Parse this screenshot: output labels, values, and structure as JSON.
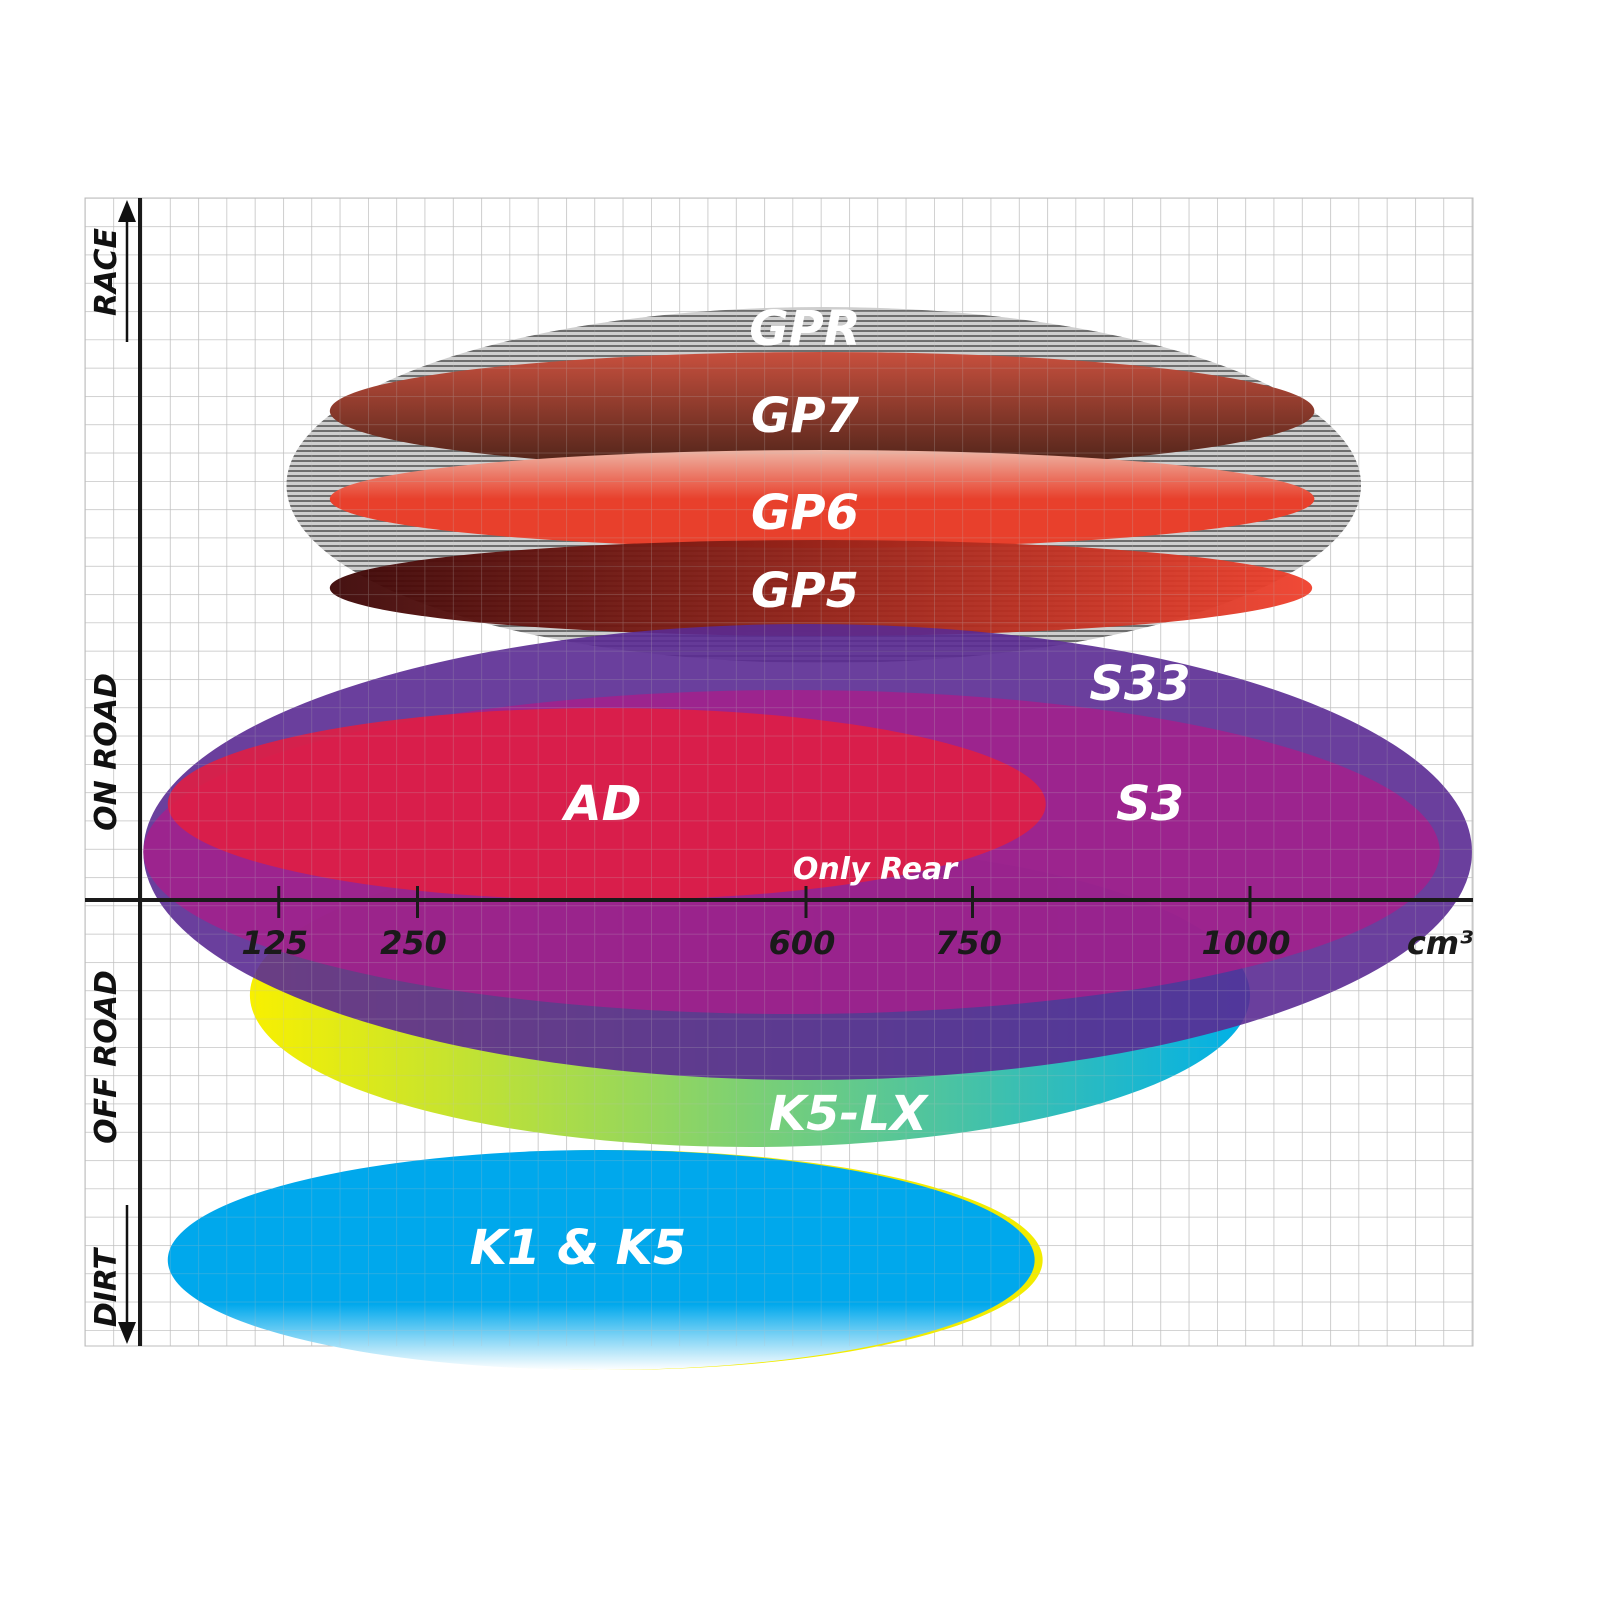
{
  "chart_data": {
    "type": "range-ellipse",
    "x_axis": {
      "unit": "cm³",
      "ticks": [
        125,
        250,
        600,
        750,
        1000
      ],
      "grid": true
    },
    "y_axis": {
      "categories": [
        "RACE",
        "ON ROAD",
        "OFF ROAD",
        "DIRT"
      ],
      "grid": true
    },
    "items": [
      {
        "label": "GPR",
        "cc_range": [
          132,
          1100
        ],
        "color": "#a8a8a8",
        "fill": "striped"
      },
      {
        "label": "GP7",
        "cc_range": [
          171,
          1058
        ],
        "color_top": "#c8503e",
        "color_bottom": "#4a2218"
      },
      {
        "label": "GP6",
        "cc_range": [
          171,
          1058
        ],
        "color_top": "#eeb4a4",
        "color_bottom": "#e8402c"
      },
      {
        "label": "GP5",
        "cc_range": [
          171,
          1056
        ],
        "color_left": "#3c0606",
        "color_right": "#f0402c"
      },
      {
        "label": "S33",
        "cc_range": [
          3,
          1200
        ],
        "color": "#5a2a92"
      },
      {
        "label": "S3",
        "cc_range": [
          3,
          1171
        ],
        "color": "#a4208c"
      },
      {
        "label": "AD",
        "cc_range": [
          25,
          816
        ],
        "color": "#e01e44"
      },
      {
        "label": "K5-LX",
        "cc_range": [
          99,
          1000
        ],
        "color_left": "#f8f000",
        "color_right": "#00b0e8",
        "note": "Only Rear"
      },
      {
        "label": "K1 & K5",
        "cc_range": [
          25,
          806
        ],
        "color": "#00a8ec"
      }
    ]
  }
}
